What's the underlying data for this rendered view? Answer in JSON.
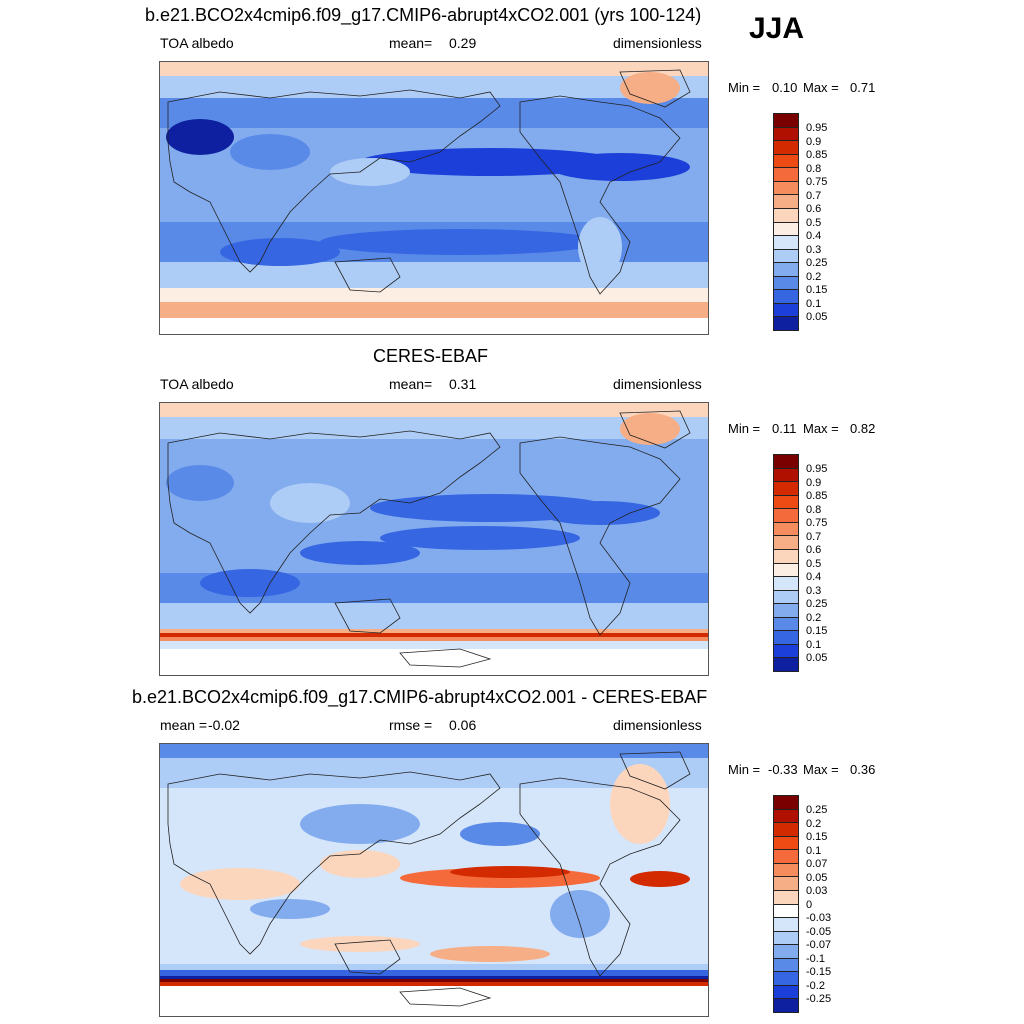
{
  "season": "JJA",
  "panels": [
    {
      "title": "b.e21.BCO2x4cmip6.f09_g17.CMIP6-abrupt4xCO2.001 (yrs 100-124)",
      "left_label": "TOA albedo",
      "mid_label": "mean=",
      "mid_value": "0.29",
      "right_label": "dimensionless",
      "min_label": "Min =",
      "min_value": "0.10",
      "max_label": "Max =",
      "max_value": "0.71"
    },
    {
      "title": "CERES-EBAF",
      "left_label": "TOA albedo",
      "mid_label": "mean=",
      "mid_value": "0.31",
      "right_label": "dimensionless",
      "min_label": "Min =",
      "min_value": "0.11",
      "max_label": "Max =",
      "max_value": "0.82"
    },
    {
      "title": "b.e21.BCO2x4cmip6.f09_g17.CMIP6-abrupt4xCO2.001 - CERES-EBAF",
      "left_label": "mean =",
      "left_value": "-0.02",
      "mid_label": "rmse =",
      "mid_value": "0.06",
      "right_label": "dimensionless",
      "min_label": "Min =",
      "min_value": "-0.33",
      "max_label": "Max =",
      "max_value": "0.36"
    }
  ],
  "colorbars": {
    "albedo": {
      "labels": [
        "0.95",
        "0.9",
        "0.85",
        "0.8",
        "0.75",
        "0.7",
        "0.6",
        "0.5",
        "0.4",
        "0.3",
        "0.25",
        "0.2",
        "0.15",
        "0.1",
        "0.05"
      ],
      "colors": [
        "#7a0000",
        "#b01000",
        "#d42a00",
        "#ee4a14",
        "#f46a3a",
        "#f58c5e",
        "#f6ae86",
        "#fbd6bd",
        "#fdeee3",
        "#d5e6fb",
        "#adccf6",
        "#83acee",
        "#5a8ae8",
        "#3666e2",
        "#1b3fd8",
        "#0e20a0"
      ]
    },
    "diff": {
      "labels": [
        "0.25",
        "0.2",
        "0.15",
        "0.1",
        "0.07",
        "0.05",
        "0.03",
        "0",
        "-0.03",
        "-0.05",
        "-0.07",
        "-0.1",
        "-0.15",
        "-0.2",
        "-0.25"
      ],
      "colors": [
        "#7a0000",
        "#b01000",
        "#d42a00",
        "#ee4a14",
        "#f46a3a",
        "#f58c5e",
        "#f6ae86",
        "#fbd6bd",
        "#ffffff",
        "#d5e6fb",
        "#adccf6",
        "#83acee",
        "#5a8ae8",
        "#3666e2",
        "#1b3fd8",
        "#0e20a0"
      ]
    }
  }
}
